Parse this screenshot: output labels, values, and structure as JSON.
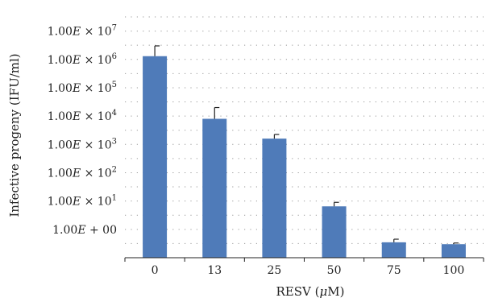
{
  "chart_data": {
    "type": "bar",
    "title": "",
    "xlabel": "RESV (μM)",
    "ylabel": "Infective progeny (IFU/ml)",
    "y_scale": "log",
    "ylim": [
      0.1,
      50000000
    ],
    "grid": true,
    "grid_style": "dotted",
    "bar_color": "#4f7bb9",
    "categories": [
      "0",
      "13",
      "25",
      "50",
      "75",
      "100"
    ],
    "values": [
      1300000,
      8000,
      1600,
      6.5,
      0.35,
      0.3
    ],
    "error_plus": [
      1700000,
      12000,
      650,
      2.5,
      0.1,
      0.03
    ],
    "y_ticks": [
      {
        "value": 1,
        "label": "1.00E + 00"
      },
      {
        "value": 10,
        "label": "1.00E × 10^1"
      },
      {
        "value": 100,
        "label": "1.00E × 10^2"
      },
      {
        "value": 1000,
        "label": "1.00E × 10^3"
      },
      {
        "value": 10000,
        "label": "1.00E × 10^4"
      },
      {
        "value": 100000,
        "label": "1.00E × 10^5"
      },
      {
        "value": 1000000,
        "label": "1.00E × 10^6"
      },
      {
        "value": 10000000,
        "label": "1.00E × 10^7"
      }
    ]
  }
}
